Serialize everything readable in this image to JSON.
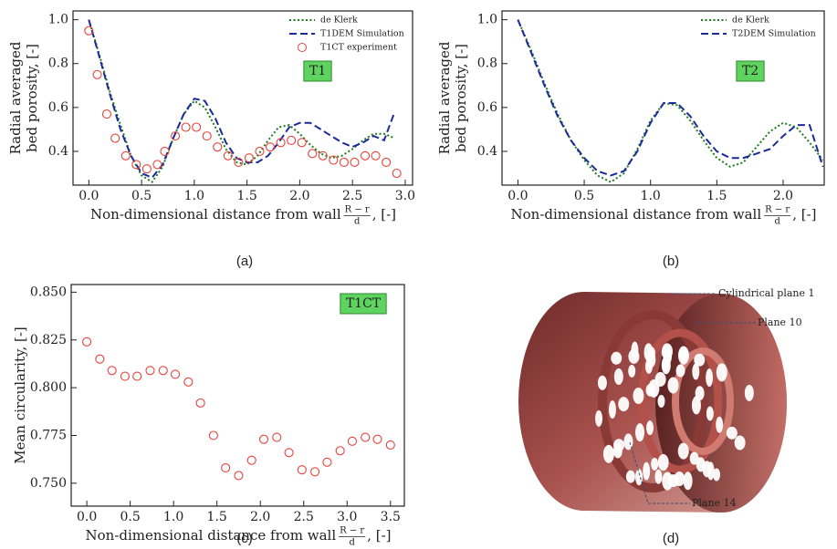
{
  "chart_data": [
    {
      "type": "line",
      "panel_label": "(a)",
      "ylabel": [
        "Radial averaged",
        "bed porosity, [-]"
      ],
      "xlabel": "Non-dimensional distance from wall",
      "xlabel_fraction": [
        "R − r",
        "d"
      ],
      "xlabel_suffix": ", [-]",
      "annotation": "T1",
      "legend": "upper right",
      "xlim": [
        -0.15,
        3.07
      ],
      "ylim": [
        0.246,
        1.04
      ],
      "xticks": [
        {
          "value": 0,
          "label": "0.0"
        },
        0.5,
        {
          "value": 1,
          "label": "1.0"
        },
        1.5,
        {
          "value": 2,
          "label": "2.0"
        },
        2.5,
        {
          "value": 3,
          "label": "3.0"
        }
      ],
      "yticks": [
        0.4,
        0.6,
        0.8,
        {
          "value": 1,
          "label": "1.0"
        }
      ],
      "series": [
        {
          "name": "de Klerk",
          "color": "#1e7b1e",
          "style": "dotted",
          "x": [
            0,
            0.1,
            0.2,
            0.3,
            0.4,
            0.5,
            0.6,
            0.7,
            0.8,
            0.9,
            1,
            1.1,
            1.2,
            1.3,
            1.4,
            1.5,
            1.6,
            1.7,
            1.8,
            1.9,
            2,
            2.1,
            2.2,
            2.3,
            2.4,
            2.5,
            2.6,
            2.7,
            2.8,
            2.9
          ],
          "values": [
            1,
            0.84,
            0.67,
            0.52,
            0.38,
            0.29,
            0.26,
            0.33,
            0.46,
            0.57,
            0.63,
            0.6,
            0.51,
            0.41,
            0.35,
            0.34,
            0.38,
            0.45,
            0.51,
            0.52,
            0.48,
            0.43,
            0.39,
            0.37,
            0.38,
            0.41,
            0.45,
            0.48,
            0.48,
            0.46
          ]
        },
        {
          "name": "T1DEM Simulation",
          "color": "#1a2a9a",
          "style": "dashed",
          "x": [
            0,
            0.1,
            0.2,
            0.3,
            0.4,
            0.5,
            0.6,
            0.7,
            0.8,
            0.9,
            1,
            1.1,
            1.2,
            1.3,
            1.4,
            1.5,
            1.6,
            1.7,
            1.8,
            1.9,
            2,
            2.1,
            2.2,
            2.3,
            2.4,
            2.5,
            2.6,
            2.7,
            2.8,
            2.9
          ],
          "values": [
            1,
            0.83,
            0.66,
            0.5,
            0.38,
            0.3,
            0.28,
            0.34,
            0.46,
            0.57,
            0.64,
            0.63,
            0.55,
            0.44,
            0.37,
            0.35,
            0.35,
            0.38,
            0.44,
            0.51,
            0.53,
            0.53,
            0.5,
            0.47,
            0.44,
            0.42,
            0.44,
            0.47,
            0.45,
            0.58
          ]
        },
        {
          "name": "T1CT experiment",
          "color": "#e8413a",
          "style": "markers",
          "x": [
            0,
            0.08,
            0.17,
            0.25,
            0.35,
            0.45,
            0.55,
            0.65,
            0.72,
            0.82,
            0.92,
            1.02,
            1.12,
            1.22,
            1.32,
            1.42,
            1.52,
            1.62,
            1.72,
            1.82,
            1.92,
            2.02,
            2.12,
            2.22,
            2.32,
            2.42,
            2.52,
            2.62,
            2.72,
            2.82,
            2.92
          ],
          "values": [
            0.95,
            0.75,
            0.57,
            0.46,
            0.38,
            0.34,
            0.32,
            0.34,
            0.4,
            0.47,
            0.51,
            0.51,
            0.47,
            0.42,
            0.38,
            0.35,
            0.37,
            0.4,
            0.42,
            0.44,
            0.45,
            0.44,
            0.39,
            0.38,
            0.36,
            0.35,
            0.35,
            0.38,
            0.38,
            0.35,
            0.3
          ]
        }
      ]
    },
    {
      "type": "line",
      "panel_label": "(b)",
      "ylabel": [
        "Radial averaged",
        "bed porosity, [-]"
      ],
      "xlabel": "Non-dimensional distance from wall",
      "xlabel_fraction": [
        "R − r",
        "d"
      ],
      "xlabel_suffix": ", [-]",
      "annotation": "T2",
      "legend": "upper right",
      "xlim": [
        -0.12,
        2.31
      ],
      "ylim": [
        0.246,
        1.04
      ],
      "xticks": [
        {
          "value": 0,
          "label": "0.0"
        },
        0.5,
        {
          "value": 1,
          "label": "1.0"
        },
        1.5,
        {
          "value": 2,
          "label": "2.0"
        }
      ],
      "yticks": [
        0.4,
        0.6,
        0.8,
        {
          "value": 1,
          "label": "1.0"
        }
      ],
      "series": [
        {
          "name": "de Klerk",
          "color": "#1e7b1e",
          "style": "dotted",
          "x": [
            0,
            0.1,
            0.2,
            0.3,
            0.4,
            0.5,
            0.6,
            0.7,
            0.8,
            0.9,
            1,
            1.1,
            1.2,
            1.3,
            1.4,
            1.5,
            1.6,
            1.7,
            1.8,
            1.9,
            2,
            2.1,
            2.2,
            2.3
          ],
          "values": [
            1,
            0.86,
            0.71,
            0.57,
            0.45,
            0.36,
            0.29,
            0.26,
            0.3,
            0.41,
            0.54,
            0.62,
            0.61,
            0.54,
            0.45,
            0.37,
            0.33,
            0.35,
            0.42,
            0.49,
            0.53,
            0.51,
            0.44,
            0.36
          ]
        },
        {
          "name": "T2DEM Simulation",
          "color": "#1a2a9a",
          "style": "dashed",
          "x": [
            0,
            0.1,
            0.2,
            0.3,
            0.4,
            0.5,
            0.6,
            0.7,
            0.8,
            0.9,
            1,
            1.1,
            1.2,
            1.3,
            1.4,
            1.5,
            1.6,
            1.7,
            1.8,
            1.9,
            2,
            2.1,
            2.2,
            2.3
          ],
          "values": [
            1,
            0.85,
            0.7,
            0.56,
            0.45,
            0.37,
            0.31,
            0.29,
            0.31,
            0.4,
            0.53,
            0.62,
            0.62,
            0.56,
            0.47,
            0.4,
            0.37,
            0.37,
            0.39,
            0.41,
            0.47,
            0.52,
            0.52,
            0.33
          ]
        }
      ]
    },
    {
      "type": "scatter",
      "panel_label": "(c)",
      "ylabel": [
        "Mean circularity, [-]"
      ],
      "xlabel": "Non-dimensional distance from wall",
      "xlabel_fraction": [
        "R − r",
        "d"
      ],
      "xlabel_suffix": ", [-]",
      "annotation": "T1CT",
      "xlim": [
        -0.18,
        3.66
      ],
      "ylim": [
        0.738,
        0.854
      ],
      "xticks": [
        {
          "value": 0,
          "label": "0.0"
        },
        0.5,
        {
          "value": 1,
          "label": "1.0"
        },
        1.5,
        {
          "value": 2,
          "label": "2.0"
        },
        2.5,
        {
          "value": 3,
          "label": "3.0"
        },
        3.5
      ],
      "yticks": [
        {
          "value": 0.75,
          "label": "0.750"
        },
        0.775,
        {
          "value": 0.8,
          "label": "0.800"
        },
        0.825,
        {
          "value": 0.85,
          "label": "0.850"
        }
      ],
      "series": [
        {
          "color": "#e8413a",
          "style": "markers",
          "x": [
            0,
            0.15,
            0.29,
            0.44,
            0.58,
            0.73,
            0.88,
            1.02,
            1.17,
            1.31,
            1.46,
            1.6,
            1.75,
            1.9,
            2.04,
            2.19,
            2.33,
            2.48,
            2.63,
            2.77,
            2.92,
            3.06,
            3.21,
            3.35,
            3.5
          ],
          "values": [
            0.824,
            0.815,
            0.809,
            0.806,
            0.806,
            0.809,
            0.809,
            0.807,
            0.803,
            0.792,
            0.775,
            0.758,
            0.754,
            0.762,
            0.773,
            0.774,
            0.766,
            0.757,
            0.756,
            0.761,
            0.767,
            0.772,
            0.774,
            0.773,
            0.77
          ]
        }
      ]
    }
  ],
  "figure_d": {
    "labels": [
      "Cylindrical plane 1",
      "Plane 10",
      "Plane 14"
    ],
    "panel_label": "(d)"
  }
}
